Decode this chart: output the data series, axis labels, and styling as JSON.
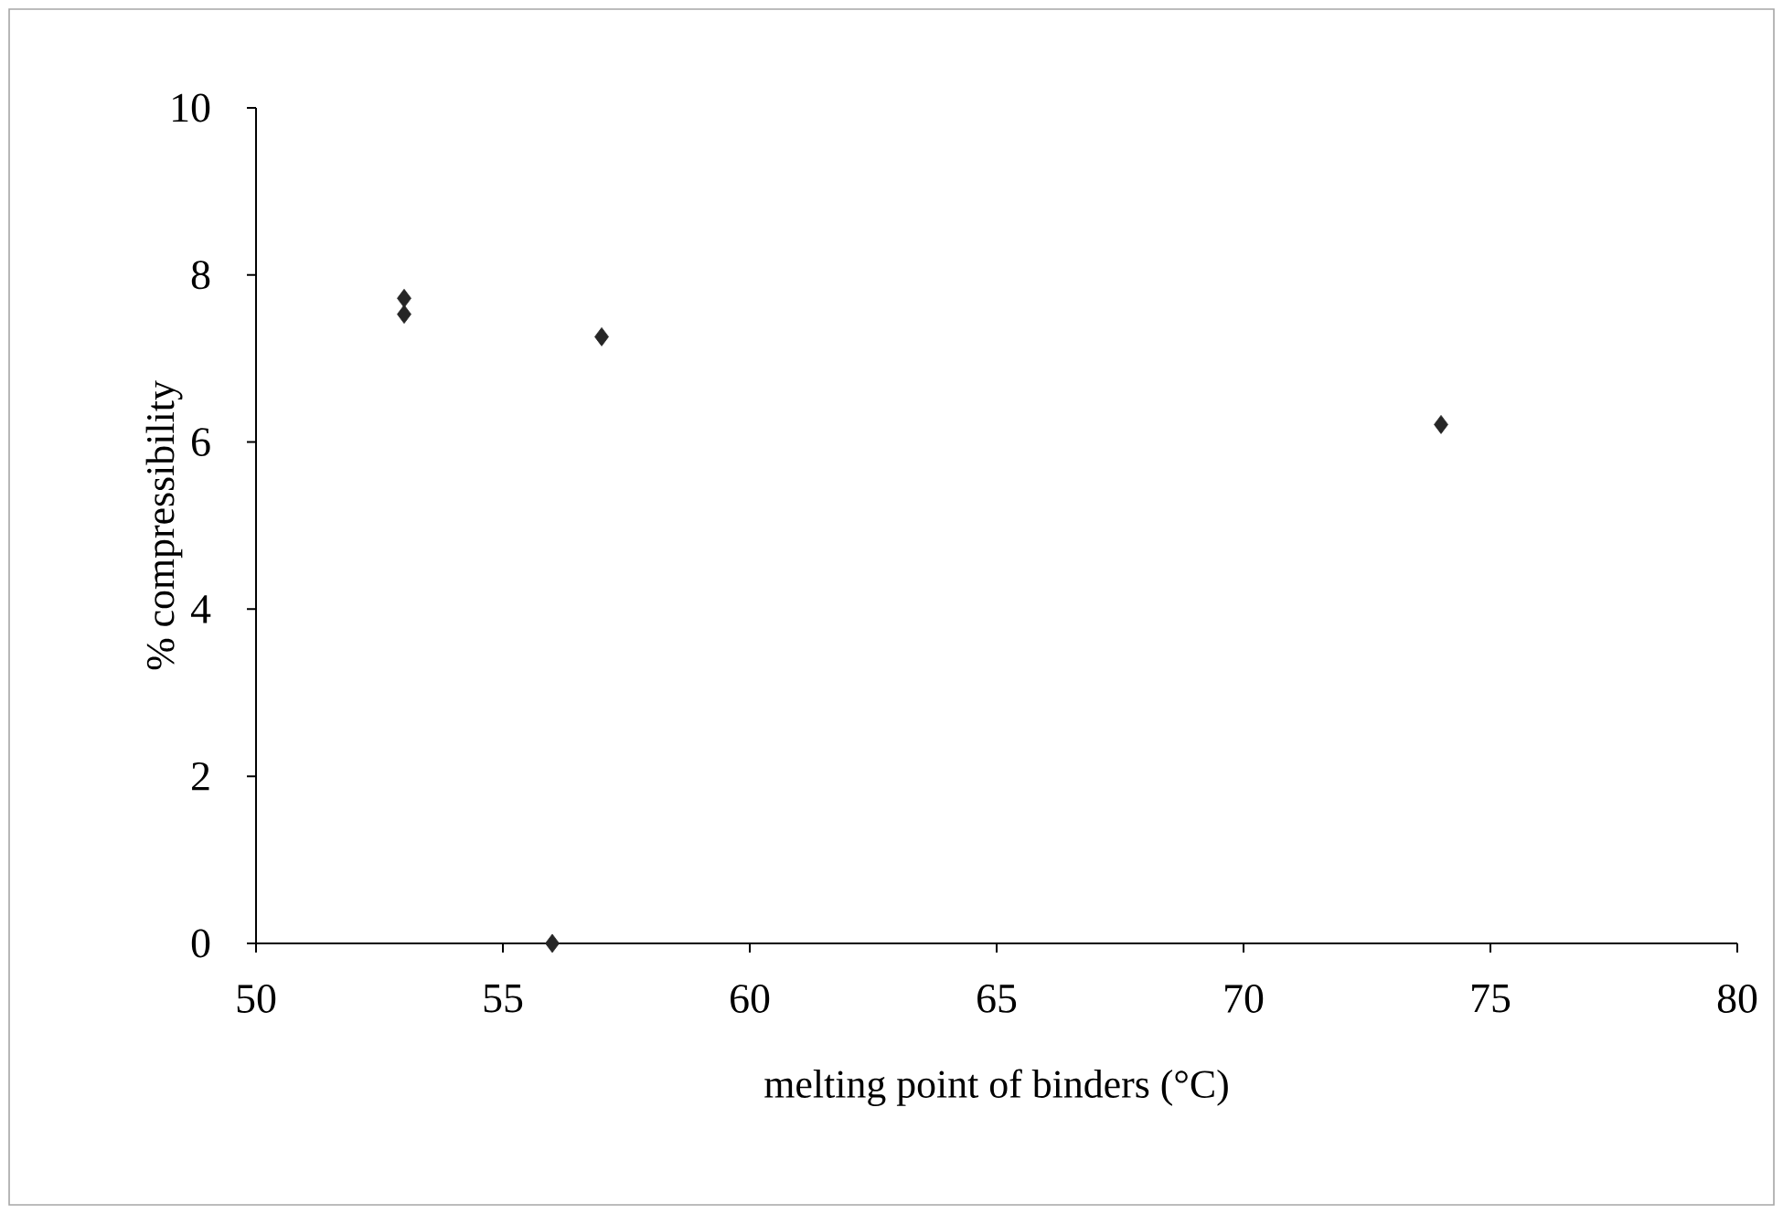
{
  "chart_data": {
    "type": "scatter",
    "xlabel": "melting point of binders (°C)",
    "ylabel": "% compressibility",
    "x": [
      53,
      53,
      56,
      57,
      74
    ],
    "series": [
      {
        "color": "#262626",
        "values": [
          7.72,
          7.53,
          0,
          7.26,
          6.21
        ]
      }
    ],
    "marker": "diamond",
    "xlim": [
      50,
      80
    ],
    "ylim": [
      0,
      10
    ],
    "xticks": [
      50,
      55,
      60,
      65,
      70,
      75,
      80
    ],
    "yticks": [
      0,
      2,
      4,
      6,
      8,
      10
    ]
  }
}
